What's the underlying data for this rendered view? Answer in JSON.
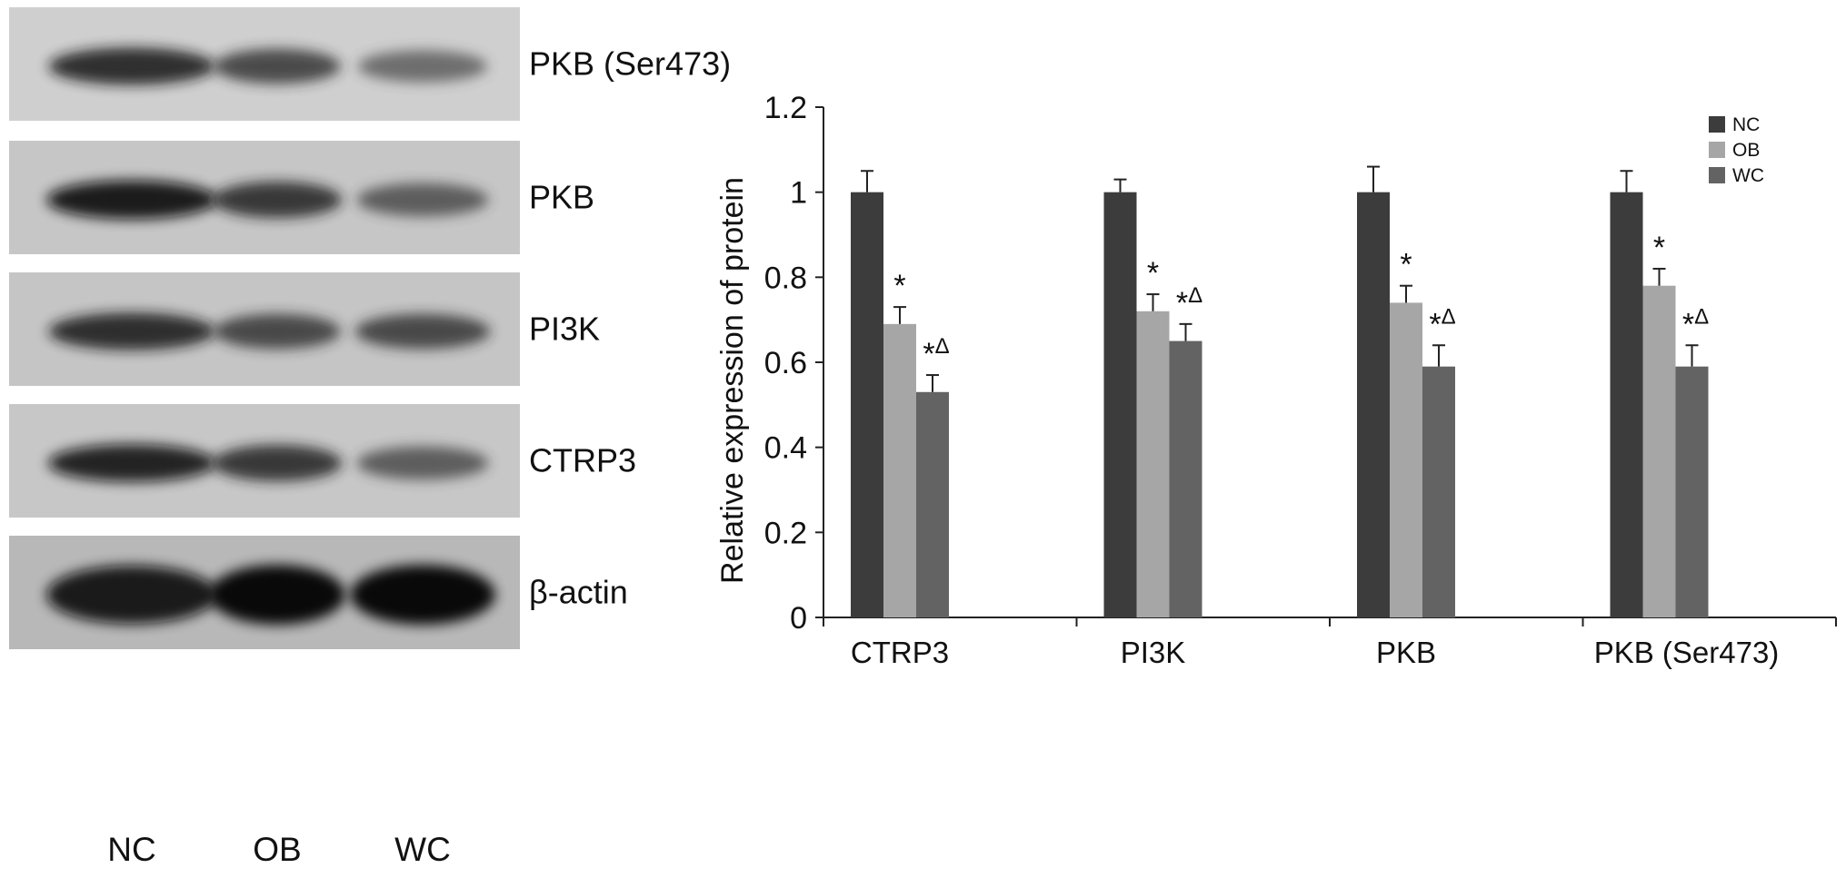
{
  "blot": {
    "rows": [
      {
        "label": "PKB (Ser473)",
        "background": "#cfcfcf",
        "intensities": [
          0.85,
          0.72,
          0.55
        ]
      },
      {
        "label": "PKB",
        "background": "#c6c6c6",
        "intensities": [
          0.95,
          0.8,
          0.62
        ]
      },
      {
        "label": "PI3K",
        "background": "#c5c5c5",
        "intensities": [
          0.85,
          0.72,
          0.72
        ]
      },
      {
        "label": "CTRP3",
        "background": "#c7c7c7",
        "intensities": [
          0.88,
          0.8,
          0.62
        ]
      },
      {
        "label": "β-actin",
        "background": "#b8b8b8",
        "intensities": [
          0.95,
          1.0,
          1.0
        ]
      }
    ],
    "lanes": [
      "NC",
      "OB",
      "WC"
    ]
  },
  "chart_data": {
    "type": "bar",
    "categories": [
      "CTRP3",
      "PI3K",
      "PKB",
      "PKB (Ser473)"
    ],
    "series": [
      {
        "name": "NC",
        "color": "#3c3c3c",
        "values": [
          1.0,
          1.0,
          1.0,
          1.0
        ],
        "errors": [
          0.05,
          0.03,
          0.06,
          0.05
        ],
        "annotations": [
          "",
          "",
          "",
          ""
        ]
      },
      {
        "name": "OB",
        "color": "#a6a6a6",
        "values": [
          0.69,
          0.72,
          0.74,
          0.78
        ],
        "errors": [
          0.04,
          0.04,
          0.04,
          0.04
        ],
        "annotations": [
          "*",
          "*",
          "*",
          "*"
        ]
      },
      {
        "name": "WC",
        "color": "#636363",
        "values": [
          0.53,
          0.65,
          0.59,
          0.59
        ],
        "errors": [
          0.04,
          0.04,
          0.05,
          0.05
        ],
        "annotations": [
          "*Δ",
          "*Δ",
          "*Δ",
          "*Δ"
        ]
      }
    ],
    "ylabel": "Relative expression of protein",
    "xlabel": "",
    "ylim": [
      0,
      1.2
    ],
    "yticks": [
      0,
      0.2,
      0.4,
      0.6,
      0.8,
      1,
      1.2
    ],
    "ytick_labels": [
      "0",
      "0.2",
      "0.4",
      "0.6",
      "0.8",
      "1",
      "1.2"
    ],
    "grid": false,
    "legend_position": "top-right"
  }
}
